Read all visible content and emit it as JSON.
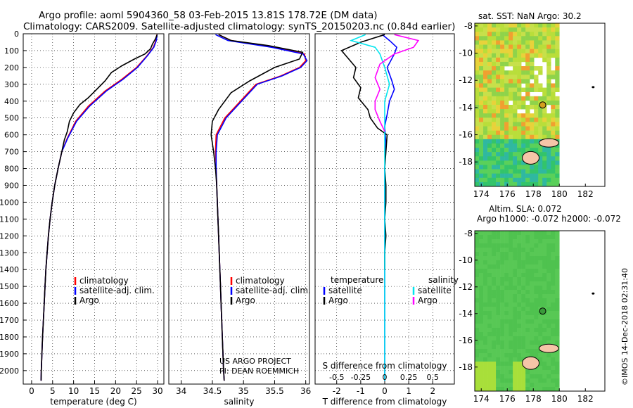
{
  "header": {
    "title_line1": "Argo profile: aoml 5904360_58 03-Feb-2015 13.81S 178.72E (DM data)",
    "title_line2": "Climatology: CARS2009. Satellite-adjusted climatology: synTS_20150203.nc (0.84d earlier)"
  },
  "colors": {
    "climatology": "#ff0000",
    "satellite": "#0000ff",
    "argo": "#000000",
    "satellite_salinity": "#00e5ee",
    "argo_salinity": "#ff00ff"
  },
  "chart_data": [
    {
      "id": "temperature",
      "type": "line",
      "xlabel": "temperature (deg C)",
      "xticks": [
        0,
        5,
        10,
        15,
        20,
        25,
        30
      ],
      "xlim": [
        -2,
        31.5
      ],
      "ylim": [
        2080,
        0
      ],
      "yticks": [
        0,
        100,
        200,
        300,
        400,
        500,
        600,
        700,
        800,
        900,
        1000,
        1100,
        1200,
        1300,
        1400,
        1500,
        1600,
        1700,
        1800,
        1900,
        2000
      ],
      "legend": [
        "climatology",
        "satellite-adj. clim.",
        "Argo"
      ],
      "series": [
        {
          "name": "climatology",
          "color": "#ff0000",
          "points": [
            [
              29.8,
              5
            ],
            [
              29.6,
              40
            ],
            [
              29.0,
              80
            ],
            [
              27.5,
              130
            ],
            [
              25.0,
              200
            ],
            [
              21.5,
              270
            ],
            [
              17.5,
              340
            ],
            [
              13.5,
              430
            ],
            [
              10.5,
              520
            ],
            [
              8.5,
              620
            ],
            [
              7.2,
              700
            ],
            [
              6.3,
              800
            ],
            [
              5.5,
              900
            ],
            [
              4.9,
              1000
            ],
            [
              4.4,
              1100
            ],
            [
              4.0,
              1200
            ],
            [
              3.7,
              1300
            ],
            [
              3.4,
              1400
            ],
            [
              3.2,
              1500
            ],
            [
              3.0,
              1600
            ],
            [
              2.8,
              1700
            ],
            [
              2.6,
              1800
            ],
            [
              2.45,
              1900
            ],
            [
              2.3,
              2000
            ],
            [
              2.25,
              2060
            ]
          ]
        },
        {
          "name": "satellite-adj. clim.",
          "color": "#0000ff",
          "points": [
            [
              29.9,
              5
            ],
            [
              29.7,
              40
            ],
            [
              29.1,
              80
            ],
            [
              27.6,
              130
            ],
            [
              25.2,
              200
            ],
            [
              21.8,
              270
            ],
            [
              17.8,
              340
            ],
            [
              13.8,
              430
            ],
            [
              10.7,
              520
            ],
            [
              8.6,
              620
            ],
            [
              7.2,
              700
            ],
            [
              6.3,
              800
            ],
            [
              5.5,
              900
            ],
            [
              4.9,
              1000
            ],
            [
              4.4,
              1100
            ],
            [
              4.0,
              1200
            ],
            [
              3.7,
              1300
            ],
            [
              3.4,
              1400
            ],
            [
              3.2,
              1500
            ],
            [
              3.0,
              1600
            ],
            [
              2.8,
              1700
            ],
            [
              2.6,
              1800
            ],
            [
              2.45,
              1900
            ],
            [
              2.3,
              2000
            ],
            [
              2.25,
              2060
            ]
          ]
        },
        {
          "name": "Argo",
          "color": "#000000",
          "points": [
            [
              29.9,
              5
            ],
            [
              29.5,
              30
            ],
            [
              28.8,
              60
            ],
            [
              28.3,
              90
            ],
            [
              27.0,
              120
            ],
            [
              24.5,
              150
            ],
            [
              21.5,
              190
            ],
            [
              19.0,
              230
            ],
            [
              17.5,
              280
            ],
            [
              15.5,
              330
            ],
            [
              13.5,
              380
            ],
            [
              11.5,
              420
            ],
            [
              10.0,
              470
            ],
            [
              9.0,
              520
            ],
            [
              8.5,
              580
            ],
            [
              7.8,
              630
            ],
            [
              7.2,
              700
            ],
            [
              6.3,
              800
            ],
            [
              5.5,
              900
            ],
            [
              4.9,
              1000
            ],
            [
              4.4,
              1100
            ],
            [
              4.0,
              1200
            ],
            [
              3.7,
              1300
            ],
            [
              3.4,
              1400
            ],
            [
              3.2,
              1500
            ],
            [
              3.0,
              1600
            ],
            [
              2.8,
              1700
            ],
            [
              2.6,
              1800
            ],
            [
              2.45,
              1900
            ],
            [
              2.3,
              2000
            ],
            [
              2.25,
              2060
            ]
          ]
        }
      ]
    },
    {
      "id": "salinity",
      "type": "line",
      "xlabel": "salinity",
      "xticks": [
        34,
        34.5,
        35,
        35.5,
        36
      ],
      "xticklabels": [
        "34",
        "34.5",
        "35",
        "35.5",
        "36"
      ],
      "xlim": [
        33.8,
        36.06
      ],
      "ylim": [
        2080,
        0
      ],
      "legend": [
        "climatology",
        "satellite-adj. clim.",
        "Argo"
      ],
      "annotation": [
        "US ARGO PROJECT",
        "PI: DEAN ROEMMICH"
      ],
      "series": [
        {
          "name": "climatology",
          "color": "#ff0000",
          "points": [
            [
              34.6,
              5
            ],
            [
              34.8,
              40
            ],
            [
              35.5,
              80
            ],
            [
              35.98,
              120
            ],
            [
              36.0,
              160
            ],
            [
              35.9,
              200
            ],
            [
              35.6,
              250
            ],
            [
              35.2,
              300
            ],
            [
              34.95,
              400
            ],
            [
              34.7,
              500
            ],
            [
              34.56,
              600
            ],
            [
              34.55,
              700
            ],
            [
              34.56,
              800
            ],
            [
              34.57,
              900
            ],
            [
              34.58,
              1000
            ],
            [
              34.59,
              1100
            ],
            [
              34.6,
              1200
            ],
            [
              34.61,
              1300
            ],
            [
              34.62,
              1400
            ],
            [
              34.63,
              1500
            ],
            [
              34.64,
              1600
            ],
            [
              34.65,
              1700
            ],
            [
              34.66,
              1800
            ],
            [
              34.67,
              1900
            ],
            [
              34.68,
              2000
            ],
            [
              34.69,
              2060
            ]
          ]
        },
        {
          "name": "satellite-adj. clim.",
          "color": "#0000ff",
          "points": [
            [
              34.55,
              5
            ],
            [
              34.75,
              40
            ],
            [
              35.45,
              80
            ],
            [
              35.96,
              120
            ],
            [
              36.02,
              160
            ],
            [
              35.92,
              200
            ],
            [
              35.62,
              250
            ],
            [
              35.22,
              300
            ],
            [
              34.97,
              400
            ],
            [
              34.72,
              500
            ],
            [
              34.58,
              600
            ],
            [
              34.56,
              700
            ],
            [
              34.56,
              800
            ],
            [
              34.57,
              900
            ],
            [
              34.58,
              1000
            ],
            [
              34.59,
              1100
            ],
            [
              34.6,
              1200
            ],
            [
              34.61,
              1300
            ],
            [
              34.62,
              1400
            ],
            [
              34.63,
              1500
            ],
            [
              34.64,
              1600
            ],
            [
              34.65,
              1700
            ],
            [
              34.66,
              1800
            ],
            [
              34.67,
              1900
            ],
            [
              34.68,
              2000
            ],
            [
              34.69,
              2060
            ]
          ]
        },
        {
          "name": "Argo",
          "color": "#000000",
          "points": [
            [
              34.6,
              5
            ],
            [
              34.8,
              40
            ],
            [
              35.4,
              70
            ],
            [
              35.95,
              110
            ],
            [
              35.9,
              150
            ],
            [
              35.5,
              200
            ],
            [
              35.1,
              280
            ],
            [
              34.8,
              350
            ],
            [
              34.6,
              450
            ],
            [
              34.5,
              520
            ],
            [
              34.48,
              600
            ],
            [
              34.52,
              700
            ],
            [
              34.55,
              800
            ],
            [
              34.57,
              900
            ],
            [
              34.58,
              1000
            ],
            [
              34.59,
              1100
            ],
            [
              34.6,
              1200
            ],
            [
              34.61,
              1300
            ],
            [
              34.62,
              1400
            ],
            [
              34.63,
              1500
            ],
            [
              34.64,
              1600
            ],
            [
              34.65,
              1700
            ],
            [
              34.66,
              1800
            ],
            [
              34.67,
              1900
            ],
            [
              34.68,
              2000
            ],
            [
              34.69,
              2060
            ]
          ]
        }
      ]
    },
    {
      "id": "difference",
      "type": "line",
      "xlabel": "T difference from climatology",
      "xlabel2": "S difference from climatology",
      "xticks": [
        -2,
        -1,
        0,
        1,
        2
      ],
      "sticks": [
        -0.5,
        -0.25,
        0,
        0.25,
        0.5
      ],
      "sticklabels": [
        "-0.5",
        "-0.25",
        "0",
        "0.25",
        "0.5"
      ],
      "xlim": [
        -2.9,
        2.9
      ],
      "ylim": [
        2080,
        0
      ],
      "legend_left_title": "temperature",
      "legend_right_title": "salinity",
      "legend_left": [
        "satellite",
        "Argo"
      ],
      "legend_right": [
        "satellite",
        "Argo"
      ],
      "series": [
        {
          "name": "satellite",
          "quantity": "temperature",
          "color": "#0000ff",
          "points": [
            [
              -0.1,
              5
            ],
            [
              0.2,
              40
            ],
            [
              0.5,
              80
            ],
            [
              0.4,
              120
            ],
            [
              0.1,
              200
            ],
            [
              0.3,
              280
            ],
            [
              0.4,
              330
            ],
            [
              0.2,
              400
            ],
            [
              0.1,
              480
            ],
            [
              0.0,
              550
            ],
            [
              0.05,
              650
            ],
            [
              0.0,
              800
            ],
            [
              0.0,
              1000
            ],
            [
              0.0,
              1200
            ],
            [
              0.0,
              1400
            ],
            [
              0.0,
              1600
            ],
            [
              0.0,
              1800
            ],
            [
              0.0,
              2060
            ]
          ]
        },
        {
          "name": "Argo",
          "quantity": "temperature",
          "color": "#000000",
          "points": [
            [
              0.0,
              5
            ],
            [
              -1.0,
              50
            ],
            [
              -1.8,
              100
            ],
            [
              -1.5,
              150
            ],
            [
              -1.2,
              200
            ],
            [
              -1.3,
              260
            ],
            [
              -1.0,
              320
            ],
            [
              -1.1,
              380
            ],
            [
              -0.7,
              450
            ],
            [
              -0.6,
              500
            ],
            [
              -0.3,
              560
            ],
            [
              0.1,
              600
            ],
            [
              0.05,
              700
            ],
            [
              0.0,
              800
            ],
            [
              0.05,
              900
            ],
            [
              0.05,
              1000
            ],
            [
              0.0,
              1100
            ],
            [
              0.05,
              1200
            ],
            [
              0.0,
              1300
            ],
            [
              0.0,
              1400
            ]
          ]
        },
        {
          "name": "satellite",
          "quantity": "salinity",
          "color": "#00e5ee",
          "points": [
            [
              -0.2,
              5
            ],
            [
              -0.35,
              40
            ],
            [
              -0.1,
              80
            ],
            [
              -0.05,
              120
            ],
            [
              0.0,
              200
            ],
            [
              0.05,
              300
            ],
            [
              0.0,
              400
            ],
            [
              0.0,
              500
            ],
            [
              0.0,
              600
            ],
            [
              0.0,
              800
            ],
            [
              0.0,
              1000
            ],
            [
              0.0,
              1200
            ],
            [
              0.0,
              1400
            ],
            [
              0.0,
              1600
            ],
            [
              0.0,
              1800
            ],
            [
              0.0,
              2060
            ]
          ]
        },
        {
          "name": "Argo",
          "quantity": "salinity",
          "color": "#ff00ff",
          "points": [
            [
              0.1,
              5
            ],
            [
              0.35,
              40
            ],
            [
              0.3,
              80
            ],
            [
              0.1,
              120
            ],
            [
              -0.05,
              180
            ],
            [
              -0.1,
              260
            ],
            [
              -0.05,
              330
            ],
            [
              -0.1,
              400
            ],
            [
              -0.1,
              450
            ],
            [
              -0.05,
              520
            ],
            [
              0.0,
              580
            ]
          ]
        }
      ]
    },
    {
      "id": "sst_map",
      "type": "heatmap",
      "title": "sat. SST: NaN Argo: 30.2",
      "xticks": [
        174,
        176,
        178,
        180,
        182
      ],
      "yticks": [
        -8,
        -10,
        -12,
        -14,
        -16,
        -18
      ],
      "xlim": [
        173.5,
        183.5
      ],
      "ylim": [
        -19.8,
        -7.8
      ],
      "marker": {
        "lon": 178.72,
        "lat": -13.81
      }
    },
    {
      "id": "sla_map",
      "type": "heatmap",
      "title": "Altim. SLA: 0.072",
      "subtitle": "Argo h1000: -0.072 h2000: -0.072",
      "xticks": [
        174,
        176,
        178,
        180,
        182
      ],
      "yticks": [
        -8,
        -10,
        -12,
        -14,
        -16,
        -18
      ],
      "xlim": [
        173.5,
        183.5
      ],
      "ylim": [
        -19.8,
        -7.8
      ],
      "marker": {
        "lon": 178.72,
        "lat": -13.81
      }
    }
  ],
  "footer": {
    "stamp": "©IMOS 14-Dec-2018 02:31:40"
  }
}
